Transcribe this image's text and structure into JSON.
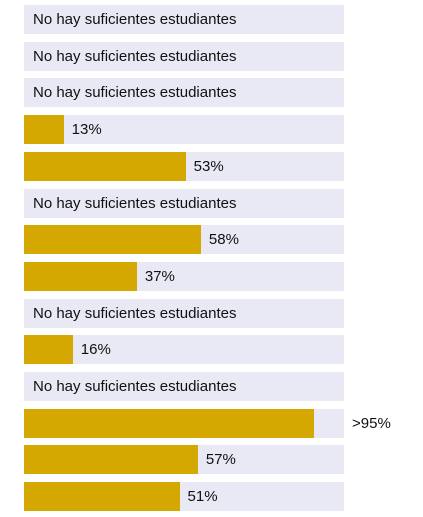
{
  "chart_data": {
    "type": "bar",
    "orientation": "horizontal",
    "title": "",
    "xlabel": "",
    "ylabel": "",
    "xlim": [
      0,
      100
    ],
    "grid": false,
    "legend": "none",
    "bar_color": "#d4a800",
    "track_color": "#e8e9f5",
    "rows": [
      {
        "value": null,
        "label": "No hay suficientes estudiantes"
      },
      {
        "value": null,
        "label": "No hay suficientes estudiantes"
      },
      {
        "value": null,
        "label": "No hay suficientes estudiantes"
      },
      {
        "value": 13,
        "label": "13%"
      },
      {
        "value": 53,
        "label": "53%"
      },
      {
        "value": null,
        "label": "No hay suficientes estudiantes"
      },
      {
        "value": 58,
        "label": "58%"
      },
      {
        "value": 37,
        "label": "37%"
      },
      {
        "value": null,
        "label": "No hay suficientes estudiantes"
      },
      {
        "value": 16,
        "label": "16%"
      },
      {
        "value": null,
        "label": "No hay suficientes estudiantes"
      },
      {
        "value": 95,
        "label": ">95%"
      },
      {
        "value": 57,
        "label": "57%"
      },
      {
        "value": 51,
        "label": "51%"
      }
    ]
  }
}
